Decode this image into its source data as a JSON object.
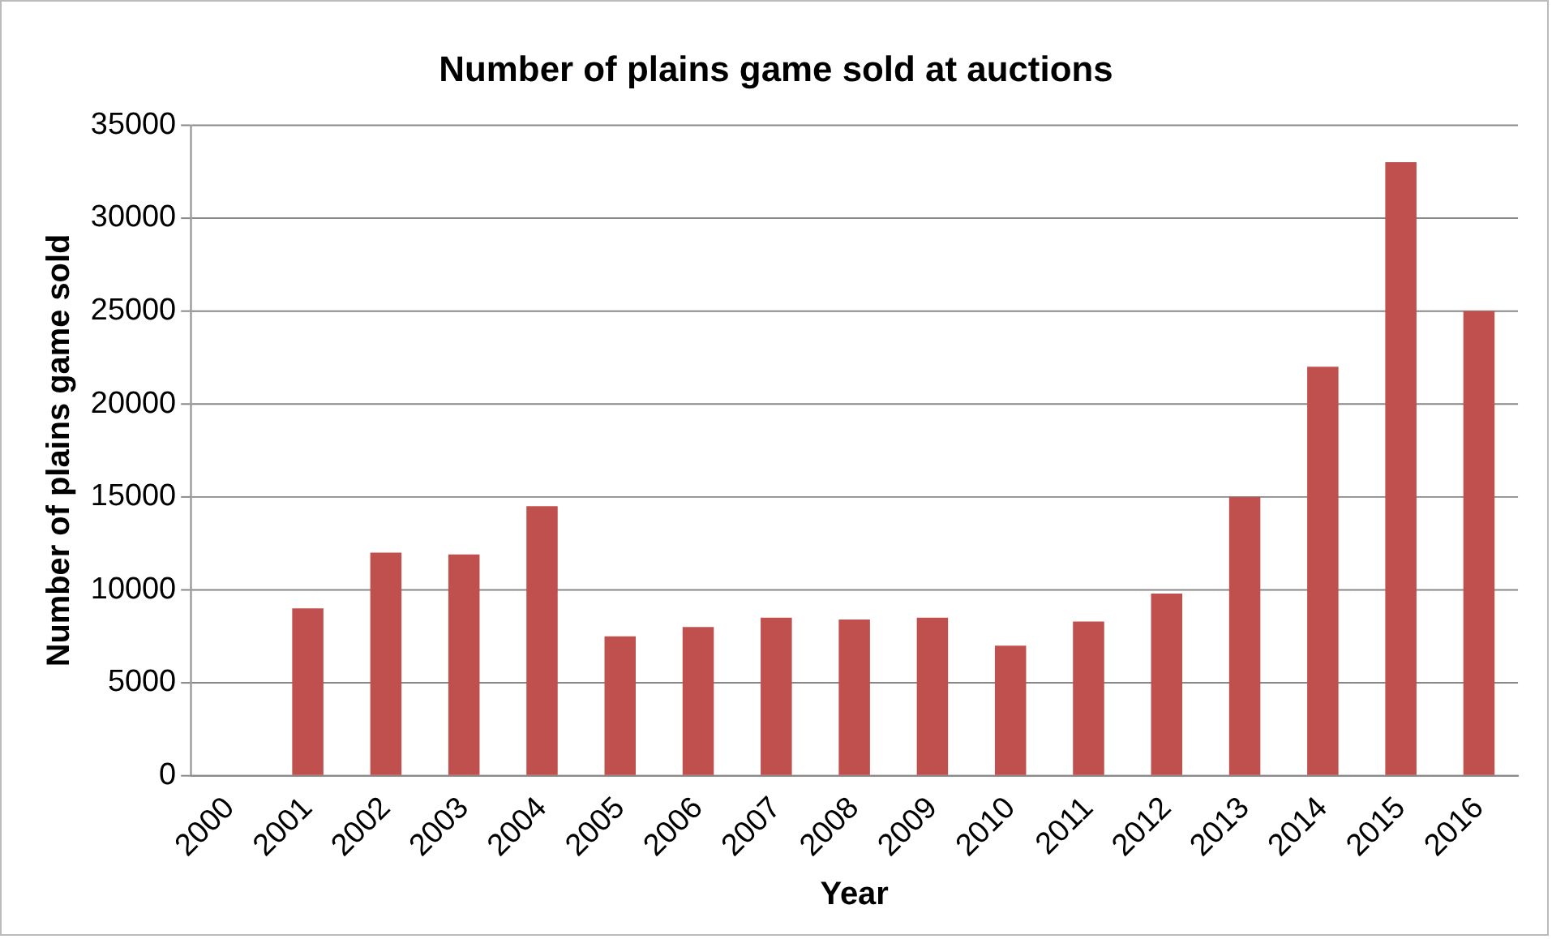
{
  "chart_data": {
    "type": "bar",
    "title": "Number of plains game sold at auctions",
    "xlabel": "Year",
    "ylabel": "Number of plains game sold",
    "categories": [
      "2000",
      "2001",
      "2002",
      "2003",
      "2004",
      "2005",
      "2006",
      "2007",
      "2008",
      "2009",
      "2010",
      "2011",
      "2012",
      "2013",
      "2014",
      "2015",
      "2016"
    ],
    "values": [
      0,
      9000,
      12000,
      11900,
      14500,
      7500,
      8000,
      8500,
      8400,
      8500,
      7000,
      8300,
      9800,
      15000,
      22000,
      33000,
      25000
    ],
    "color": "#c0504d",
    "ylim": [
      0,
      35000
    ],
    "yticks": [
      0,
      5000,
      10000,
      15000,
      20000,
      25000,
      30000,
      35000
    ],
    "grid": "y",
    "legend": false
  }
}
